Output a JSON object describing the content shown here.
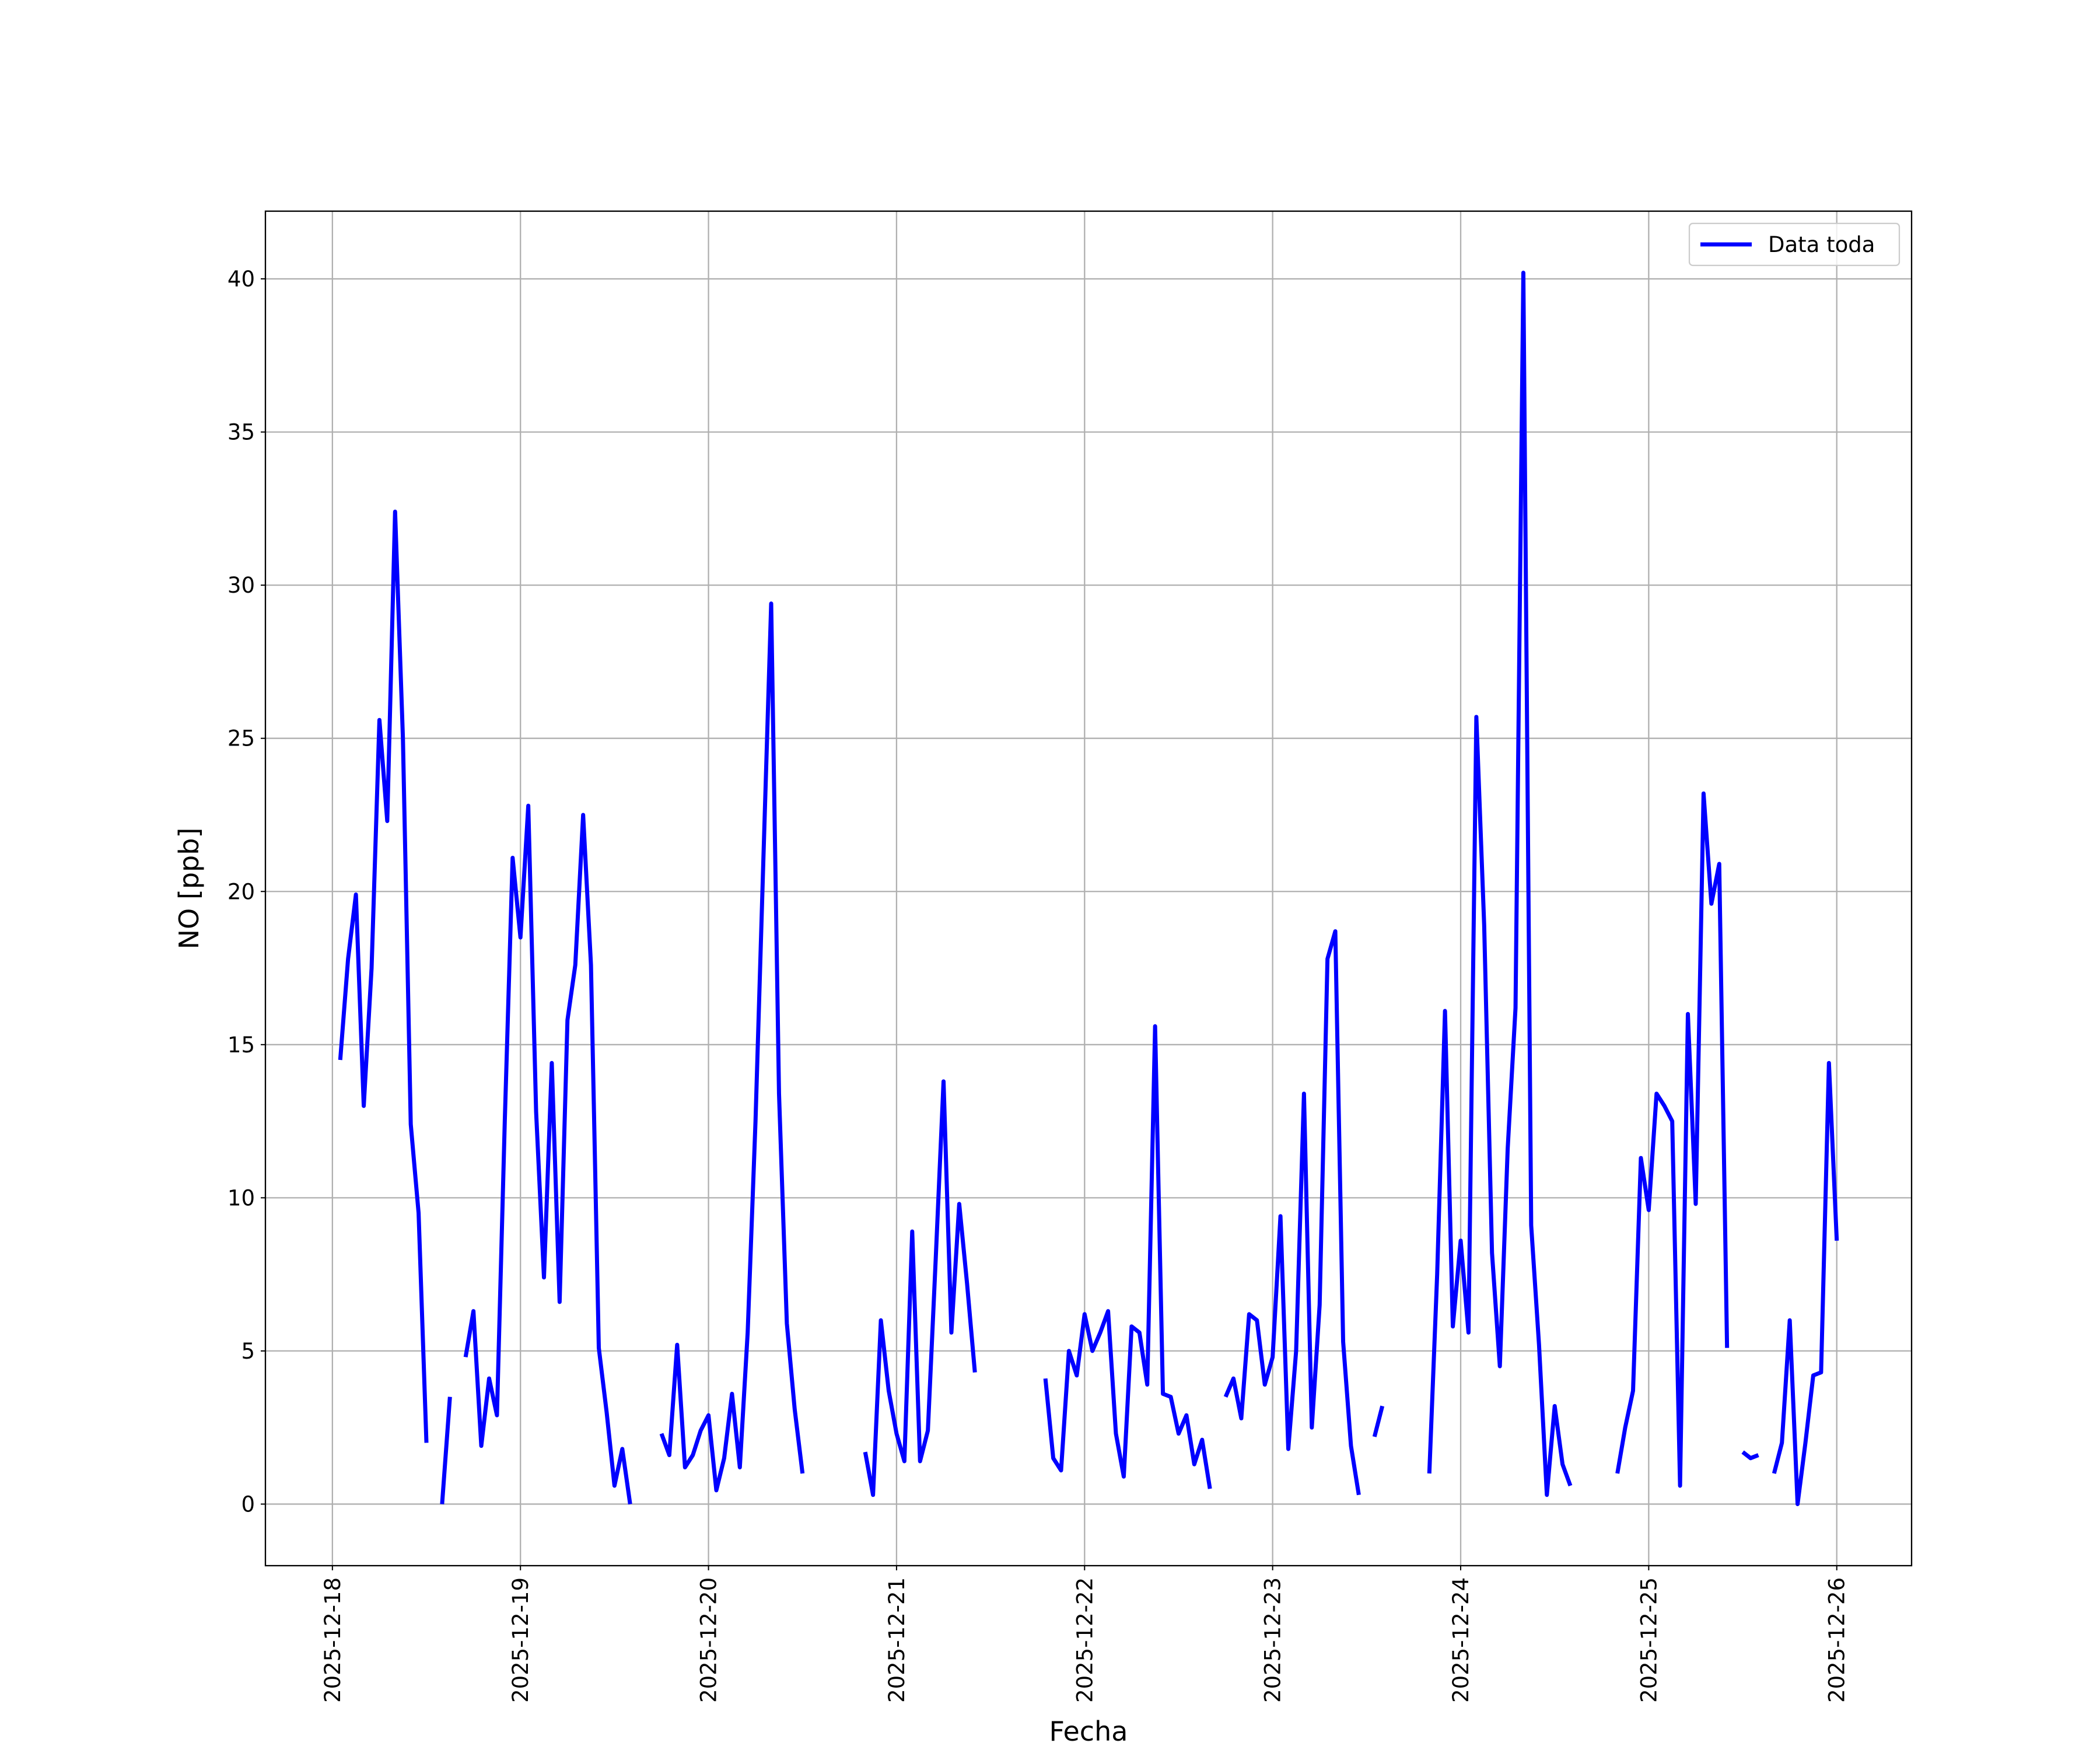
{
  "chart_data": {
    "type": "line",
    "xlabel": "Fecha",
    "ylabel": "NO [ppb]",
    "x": [
      "2025-12-18T01:00",
      "2025-12-18T02:00",
      "2025-12-18T03:00",
      "2025-12-18T04:00",
      "2025-12-18T05:00",
      "2025-12-18T06:00",
      "2025-12-18T07:00",
      "2025-12-18T08:00",
      "2025-12-18T09:00",
      "2025-12-18T10:00",
      "2025-12-18T11:00",
      "2025-12-18T12:00",
      "2025-12-18T13:00",
      "2025-12-18T14:00",
      "2025-12-18T15:00",
      "2025-12-18T16:00",
      "2025-12-18T17:00",
      "2025-12-18T18:00",
      "2025-12-18T19:00",
      "2025-12-18T20:00",
      "2025-12-18T21:00",
      "2025-12-18T22:00",
      "2025-12-18T23:00",
      "2025-12-19T00:00",
      "2025-12-19T01:00",
      "2025-12-19T02:00",
      "2025-12-19T03:00",
      "2025-12-19T04:00",
      "2025-12-19T05:00",
      "2025-12-19T06:00",
      "2025-12-19T07:00",
      "2025-12-19T08:00",
      "2025-12-19T09:00",
      "2025-12-19T10:00",
      "2025-12-19T11:00",
      "2025-12-19T12:00",
      "2025-12-19T13:00",
      "2025-12-19T14:00",
      "2025-12-19T15:00",
      "2025-12-19T16:00",
      "2025-12-19T17:00",
      "2025-12-19T18:00",
      "2025-12-19T19:00",
      "2025-12-19T20:00",
      "2025-12-19T21:00",
      "2025-12-19T22:00",
      "2025-12-19T23:00",
      "2025-12-20T00:00",
      "2025-12-20T01:00",
      "2025-12-20T02:00",
      "2025-12-20T03:00",
      "2025-12-20T04:00",
      "2025-12-20T05:00",
      "2025-12-20T06:00",
      "2025-12-20T07:00",
      "2025-12-20T08:00",
      "2025-12-20T09:00",
      "2025-12-20T10:00",
      "2025-12-20T11:00",
      "2025-12-20T12:00",
      "2025-12-20T13:00",
      "2025-12-20T14:00",
      "2025-12-20T15:00",
      "2025-12-20T16:00",
      "2025-12-20T17:00",
      "2025-12-20T18:00",
      "2025-12-20T19:00",
      "2025-12-20T20:00",
      "2025-12-20T21:00",
      "2025-12-20T22:00",
      "2025-12-20T23:00",
      "2025-12-21T00:00",
      "2025-12-21T01:00",
      "2025-12-21T02:00",
      "2025-12-21T03:00",
      "2025-12-21T04:00",
      "2025-12-21T05:00",
      "2025-12-21T06:00",
      "2025-12-21T07:00",
      "2025-12-21T08:00",
      "2025-12-21T09:00",
      "2025-12-21T10:00",
      "2025-12-21T11:00",
      "2025-12-21T12:00",
      "2025-12-21T13:00",
      "2025-12-21T14:00",
      "2025-12-21T15:00",
      "2025-12-21T16:00",
      "2025-12-21T17:00",
      "2025-12-21T18:00",
      "2025-12-21T19:00",
      "2025-12-21T20:00",
      "2025-12-21T21:00",
      "2025-12-21T22:00",
      "2025-12-21T23:00",
      "2025-12-22T00:00",
      "2025-12-22T01:00",
      "2025-12-22T02:00",
      "2025-12-22T03:00",
      "2025-12-22T04:00",
      "2025-12-22T05:00",
      "2025-12-22T06:00",
      "2025-12-22T07:00",
      "2025-12-22T08:00",
      "2025-12-22T09:00",
      "2025-12-22T10:00",
      "2025-12-22T11:00",
      "2025-12-22T12:00",
      "2025-12-22T13:00",
      "2025-12-22T14:00",
      "2025-12-22T15:00",
      "2025-12-22T16:00",
      "2025-12-22T17:00",
      "2025-12-22T18:00",
      "2025-12-22T19:00",
      "2025-12-22T20:00",
      "2025-12-22T21:00",
      "2025-12-22T22:00",
      "2025-12-22T23:00",
      "2025-12-23T00:00",
      "2025-12-23T01:00",
      "2025-12-23T02:00",
      "2025-12-23T03:00",
      "2025-12-23T04:00",
      "2025-12-23T05:00",
      "2025-12-23T06:00",
      "2025-12-23T07:00",
      "2025-12-23T08:00",
      "2025-12-23T09:00",
      "2025-12-23T10:00",
      "2025-12-23T11:00",
      "2025-12-23T12:00",
      "2025-12-23T13:00",
      "2025-12-23T14:00",
      "2025-12-23T15:00",
      "2025-12-23T16:00",
      "2025-12-23T17:00",
      "2025-12-23T18:00",
      "2025-12-23T19:00",
      "2025-12-23T20:00",
      "2025-12-23T21:00",
      "2025-12-23T22:00",
      "2025-12-23T23:00",
      "2025-12-24T00:00",
      "2025-12-24T01:00",
      "2025-12-24T02:00",
      "2025-12-24T03:00",
      "2025-12-24T04:00",
      "2025-12-24T05:00",
      "2025-12-24T06:00",
      "2025-12-24T07:00",
      "2025-12-24T08:00",
      "2025-12-24T09:00",
      "2025-12-24T10:00",
      "2025-12-24T11:00",
      "2025-12-24T12:00",
      "2025-12-24T13:00",
      "2025-12-24T14:00",
      "2025-12-24T15:00",
      "2025-12-24T16:00",
      "2025-12-24T17:00",
      "2025-12-24T18:00",
      "2025-12-24T19:00",
      "2025-12-24T20:00",
      "2025-12-24T21:00",
      "2025-12-24T22:00",
      "2025-12-24T23:00",
      "2025-12-25T00:00",
      "2025-12-25T01:00",
      "2025-12-25T02:00",
      "2025-12-25T03:00",
      "2025-12-25T04:00",
      "2025-12-25T05:00",
      "2025-12-25T06:00",
      "2025-12-25T07:00",
      "2025-12-25T08:00",
      "2025-12-25T09:00",
      "2025-12-25T10:00",
      "2025-12-25T11:00",
      "2025-12-25T12:00",
      "2025-12-25T13:00",
      "2025-12-25T14:00",
      "2025-12-25T15:00",
      "2025-12-25T16:00",
      "2025-12-25T17:00",
      "2025-12-25T18:00",
      "2025-12-25T19:00",
      "2025-12-25T20:00",
      "2025-12-25T21:00",
      "2025-12-25T22:00",
      "2025-12-25T23:00",
      "2025-12-26T00:00"
    ],
    "series": [
      {
        "name": "Data toda",
        "color": "#0000ff",
        "values": [
          14.5,
          17.8,
          19.9,
          13.0,
          17.5,
          25.6,
          22.3,
          32.4,
          25.0,
          12.4,
          9.5,
          2.0,
          null,
          0.0,
          3.5,
          null,
          4.8,
          6.3,
          1.9,
          4.1,
          2.9,
          12.5,
          21.1,
          18.5,
          22.8,
          12.8,
          7.4,
          14.4,
          6.6,
          15.8,
          17.6,
          22.5,
          17.6,
          5.1,
          3.0,
          0.6,
          1.8,
          0.0,
          null,
          null,
          null,
          2.3,
          1.6,
          5.2,
          1.2,
          1.6,
          2.4,
          2.9,
          0.45,
          1.5,
          3.6,
          1.2,
          5.6,
          12.5,
          21.0,
          29.4,
          13.4,
          5.9,
          3.1,
          1.0,
          null,
          null,
          null,
          null,
          null,
          null,
          null,
          1.7,
          0.3,
          6.0,
          3.7,
          2.3,
          1.4,
          8.9,
          1.4,
          2.4,
          8.0,
          13.8,
          5.6,
          9.8,
          7.2,
          4.3,
          null,
          null,
          null,
          null,
          null,
          null,
          null,
          null,
          4.1,
          1.5,
          1.1,
          5.0,
          4.2,
          6.2,
          5.0,
          5.6,
          6.3,
          2.3,
          0.9,
          5.8,
          5.6,
          3.9,
          15.6,
          3.6,
          3.5,
          2.3,
          2.9,
          1.3,
          2.1,
          0.5,
          null,
          3.5,
          4.1,
          2.8,
          6.2,
          6.0,
          3.9,
          4.8,
          9.4,
          1.8,
          5.0,
          13.4,
          2.5,
          6.5,
          17.8,
          18.7,
          5.3,
          1.9,
          0.3,
          null,
          2.2,
          3.2,
          null,
          null,
          null,
          null,
          null,
          1.0,
          7.5,
          16.1,
          5.8,
          8.6,
          5.6,
          25.7,
          18.9,
          8.2,
          4.5,
          11.6,
          16.2,
          40.2,
          9.1,
          5.2,
          0.3,
          3.2,
          1.3,
          0.6,
          null,
          null,
          null,
          null,
          null,
          1.0,
          2.5,
          3.7,
          11.3,
          9.6,
          13.4,
          13.0,
          12.5,
          0.6,
          16.0,
          9.8,
          23.2,
          19.6,
          20.9,
          5.1,
          null,
          1.7,
          1.5,
          1.6,
          null,
          1.0,
          2.0,
          6.0,
          0.0,
          2.0,
          4.2,
          4.3,
          14.4,
          8.6
        ]
      }
    ],
    "xlim": [
      "2025-12-17T15:27",
      "2025-12-26T09:33"
    ],
    "xticks": [
      "2025-12-18",
      "2025-12-19",
      "2025-12-20",
      "2025-12-21",
      "2025-12-22",
      "2025-12-23",
      "2025-12-24",
      "2025-12-25",
      "2025-12-26"
    ],
    "ylim": [
      -2.01,
      42.21
    ],
    "yticks": [
      0,
      5,
      10,
      15,
      20,
      25,
      30,
      35,
      40
    ],
    "grid": true,
    "legend": "upper right"
  }
}
